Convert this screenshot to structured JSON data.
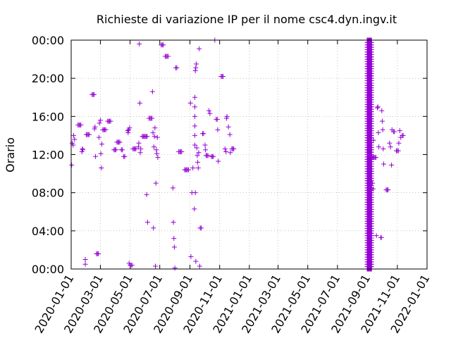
{
  "chart_data": {
    "type": "scatter",
    "title": "Richieste di variazione IP per il nome csc4.dyn.ingv.it",
    "xlabel": "",
    "ylabel": "Orario",
    "x_range": [
      "2020-01-01",
      "2022-01-01"
    ],
    "y_range_hours": [
      0,
      24
    ],
    "x_ticks": [
      "2020-01-01",
      "2020-03-01",
      "2020-05-01",
      "2020-07-01",
      "2020-09-01",
      "2020-11-01",
      "2021-01-01",
      "2021-03-01",
      "2021-05-01",
      "2021-07-01",
      "2021-09-01",
      "2021-11-01",
      "2022-01-01"
    ],
    "y_ticks": [
      {
        "value": 0,
        "label": "00:00"
      },
      {
        "value": 4,
        "label": "04:00"
      },
      {
        "value": 8,
        "label": "08:00"
      },
      {
        "value": 12,
        "label": "12:00"
      },
      {
        "value": 16,
        "label": "16:00"
      },
      {
        "value": 20,
        "label": "20:00"
      },
      {
        "value": 24,
        "label": "00:00"
      }
    ],
    "grid": true,
    "marker": "plus",
    "color": "#9400d3",
    "points": [
      [
        "2020-01-02",
        10.9
      ],
      [
        "2020-01-03",
        13.2
      ],
      [
        "2020-01-05",
        13.0
      ],
      [
        "2020-01-06",
        14.0
      ],
      [
        "2020-01-08",
        13.6
      ],
      [
        "2020-01-15",
        15.1
      ],
      [
        "2020-01-17",
        15.1
      ],
      [
        "2020-01-19",
        15.1
      ],
      [
        "2020-01-21",
        15.1
      ],
      [
        "2020-01-23",
        12.3
      ],
      [
        "2020-01-24",
        12.6
      ],
      [
        "2020-01-25",
        12.5
      ],
      [
        "2020-01-30",
        0.5
      ],
      [
        "2020-01-30",
        1.0
      ],
      [
        "2020-02-01",
        14.1
      ],
      [
        "2020-02-03",
        14.1
      ],
      [
        "2020-02-05",
        14.1
      ],
      [
        "2020-02-07",
        14.1
      ],
      [
        "2020-02-13",
        18.3
      ],
      [
        "2020-02-15",
        18.3
      ],
      [
        "2020-02-17",
        18.3
      ],
      [
        "2020-02-18",
        14.7
      ],
      [
        "2020-02-19",
        14.9
      ],
      [
        "2020-02-20",
        11.8
      ],
      [
        "2020-02-22",
        1.6
      ],
      [
        "2020-02-24",
        1.6
      ],
      [
        "2020-02-26",
        1.6
      ],
      [
        "2020-02-27",
        13.8
      ],
      [
        "2020-02-28",
        15.3
      ],
      [
        "2020-03-01",
        15.6
      ],
      [
        "2020-03-02",
        12.1
      ],
      [
        "2020-03-03",
        10.6
      ],
      [
        "2020-03-04",
        13.1
      ],
      [
        "2020-03-06",
        14.6
      ],
      [
        "2020-03-08",
        14.6
      ],
      [
        "2020-03-10",
        14.6
      ],
      [
        "2020-03-12",
        14.6
      ],
      [
        "2020-03-16",
        15.5
      ],
      [
        "2020-03-18",
        15.5
      ],
      [
        "2020-03-20",
        15.5
      ],
      [
        "2020-03-22",
        15.5
      ],
      [
        "2020-03-29",
        12.5
      ],
      [
        "2020-03-31",
        12.5
      ],
      [
        "2020-04-02",
        12.5
      ],
      [
        "2020-04-04",
        13.3
      ],
      [
        "2020-04-06",
        13.3
      ],
      [
        "2020-04-08",
        13.3
      ],
      [
        "2020-04-10",
        13.3
      ],
      [
        "2020-04-13",
        12.5
      ],
      [
        "2020-04-15",
        12.5
      ],
      [
        "2020-04-18",
        11.8
      ],
      [
        "2020-04-20",
        11.8
      ],
      [
        "2020-04-26",
        14.5
      ],
      [
        "2020-04-27",
        14.3
      ],
      [
        "2020-04-28",
        14.6
      ],
      [
        "2020-04-29",
        0.6
      ],
      [
        "2020-04-30",
        14.8
      ],
      [
        "2020-05-01",
        0.4
      ],
      [
        "2020-05-03",
        0.4
      ],
      [
        "2020-05-05",
        0.4
      ],
      [
        "2020-05-07",
        12.6
      ],
      [
        "2020-05-09",
        12.6
      ],
      [
        "2020-05-11",
        12.6
      ],
      [
        "2020-05-13",
        12.6
      ],
      [
        "2020-05-18",
        12.8
      ],
      [
        "2020-05-19",
        13.2
      ],
      [
        "2020-05-20",
        23.6
      ],
      [
        "2020-05-21",
        17.4
      ],
      [
        "2020-05-22",
        12.2
      ],
      [
        "2020-05-23",
        12.6
      ],
      [
        "2020-05-26",
        13.9
      ],
      [
        "2020-05-28",
        13.9
      ],
      [
        "2020-05-30",
        13.9
      ],
      [
        "2020-06-01",
        13.9
      ],
      [
        "2020-06-03",
        13.9
      ],
      [
        "2020-06-05",
        13.9
      ],
      [
        "2020-06-04",
        7.8
      ],
      [
        "2020-06-06",
        4.9
      ],
      [
        "2020-06-09",
        15.8
      ],
      [
        "2020-06-11",
        15.8
      ],
      [
        "2020-06-13",
        15.8
      ],
      [
        "2020-06-15",
        15.8
      ],
      [
        "2020-06-16",
        18.6
      ],
      [
        "2020-06-17",
        14.3
      ],
      [
        "2020-06-18",
        4.3
      ],
      [
        "2020-06-19",
        12.8
      ],
      [
        "2020-06-20",
        13.9
      ],
      [
        "2020-06-21",
        14.8
      ],
      [
        "2020-06-22",
        0.3
      ],
      [
        "2020-06-23",
        9.0
      ],
      [
        "2020-06-24",
        12.5
      ],
      [
        "2020-06-25",
        12.1
      ],
      [
        "2020-06-26",
        13.8
      ],
      [
        "2020-06-27",
        11.7
      ],
      [
        "2020-07-04",
        23.5
      ],
      [
        "2020-07-06",
        23.5
      ],
      [
        "2020-07-08",
        23.5
      ],
      [
        "2020-07-12",
        22.3
      ],
      [
        "2020-07-14",
        22.3
      ],
      [
        "2020-07-16",
        22.3
      ],
      [
        "2020-07-18",
        22.3
      ],
      [
        "2020-07-28",
        8.5
      ],
      [
        "2020-07-29",
        4.9
      ],
      [
        "2020-07-30",
        3.2
      ],
      [
        "2020-07-31",
        2.3
      ],
      [
        "2020-08-01",
        0.1
      ],
      [
        "2020-08-03",
        21.1
      ],
      [
        "2020-08-05",
        21.1
      ],
      [
        "2020-08-09",
        12.3
      ],
      [
        "2020-08-11",
        12.3
      ],
      [
        "2020-08-13",
        12.3
      ],
      [
        "2020-08-15",
        12.3
      ],
      [
        "2020-08-21",
        10.4
      ],
      [
        "2020-08-23",
        10.4
      ],
      [
        "2020-08-25",
        10.4
      ],
      [
        "2020-08-27",
        10.4
      ],
      [
        "2020-08-29",
        10.4
      ],
      [
        "2020-09-02",
        17.4
      ],
      [
        "2020-09-03",
        1.3
      ],
      [
        "2020-09-05",
        8.0
      ],
      [
        "2020-09-07",
        10.6
      ],
      [
        "2020-09-10",
        6.3
      ],
      [
        "2020-09-12",
        8.0
      ],
      [
        "2020-09-13",
        0.8
      ],
      [
        "2020-09-11",
        13.0
      ],
      [
        "2020-09-11",
        14.0
      ],
      [
        "2020-09-11",
        15.0
      ],
      [
        "2020-09-11",
        16.0
      ],
      [
        "2020-09-11",
        17.0
      ],
      [
        "2020-09-11",
        18.0
      ],
      [
        "2020-09-12",
        20.8
      ],
      [
        "2020-09-13",
        21.1
      ],
      [
        "2020-09-14",
        21.5
      ],
      [
        "2020-09-15",
        12.7
      ],
      [
        "2020-09-16",
        11.9
      ],
      [
        "2020-09-17",
        11.2
      ],
      [
        "2020-09-18",
        10.6
      ],
      [
        "2020-09-19",
        12.2
      ],
      [
        "2020-09-20",
        23.1
      ],
      [
        "2020-09-21",
        0.3
      ],
      [
        "2020-09-22",
        4.3
      ],
      [
        "2020-09-24",
        4.3
      ],
      [
        "2020-09-27",
        14.2
      ],
      [
        "2020-09-29",
        14.2
      ],
      [
        "2020-10-02",
        13.0
      ],
      [
        "2020-10-03",
        12.5
      ],
      [
        "2020-10-04",
        11.9
      ],
      [
        "2020-10-06",
        11.9
      ],
      [
        "2020-10-08",
        11.9
      ],
      [
        "2020-10-10",
        16.6
      ],
      [
        "2020-10-12",
        16.3
      ],
      [
        "2020-10-15",
        11.8
      ],
      [
        "2020-10-17",
        11.8
      ],
      [
        "2020-10-19",
        11.8
      ],
      [
        "2020-10-22",
        24.0
      ],
      [
        "2020-10-25",
        15.7
      ],
      [
        "2020-10-27",
        15.7
      ],
      [
        "2020-10-28",
        14.6
      ],
      [
        "2020-10-29",
        11.3
      ],
      [
        "2020-11-04",
        20.2
      ],
      [
        "2020-11-06",
        20.2
      ],
      [
        "2020-11-08",
        20.2
      ],
      [
        "2020-11-12",
        12.6
      ],
      [
        "2020-11-14",
        12.3
      ],
      [
        "2020-11-15",
        15.8
      ],
      [
        "2020-11-16",
        16.0
      ],
      [
        "2020-11-19",
        14.9
      ],
      [
        "2020-11-22",
        14.1
      ],
      [
        "2020-11-23",
        12.2
      ],
      [
        "2020-11-26",
        12.6
      ],
      [
        "2020-11-28",
        12.6
      ],
      [
        "2020-11-30",
        12.6
      ]
    ],
    "dense_band": {
      "x_start": "2021-08-31",
      "x_end": "2021-09-09",
      "y_from": 0.0,
      "y_to": 24.0,
      "step": 0.25
    },
    "points_after": [
      [
        "2021-09-10",
        11.7
      ],
      [
        "2021-09-12",
        11.7
      ],
      [
        "2021-09-14",
        11.7
      ],
      [
        "2021-09-16",
        11.7
      ],
      [
        "2021-09-18",
        11.7
      ],
      [
        "2021-09-11",
        9.0
      ],
      [
        "2021-09-12",
        8.4
      ],
      [
        "2021-09-13",
        13.5
      ],
      [
        "2021-09-19",
        3.5
      ],
      [
        "2021-09-21",
        16.9
      ],
      [
        "2021-09-22",
        17.0
      ],
      [
        "2021-09-23",
        14.3
      ],
      [
        "2021-09-24",
        12.8
      ],
      [
        "2021-09-28",
        3.3
      ],
      [
        "2021-09-29",
        3.3
      ],
      [
        "2021-09-30",
        16.6
      ],
      [
        "2021-10-01",
        15.5
      ],
      [
        "2021-10-02",
        14.6
      ],
      [
        "2021-10-03",
        12.6
      ],
      [
        "2021-10-04",
        11.0
      ],
      [
        "2021-10-09",
        8.3
      ],
      [
        "2021-10-11",
        8.3
      ],
      [
        "2021-10-13",
        8.3
      ],
      [
        "2021-10-16",
        13.2
      ],
      [
        "2021-10-18",
        12.8
      ],
      [
        "2021-10-20",
        10.9
      ],
      [
        "2021-10-21",
        14.6
      ],
      [
        "2021-10-24",
        14.4
      ],
      [
        "2021-10-26",
        14.4
      ],
      [
        "2021-10-30",
        12.4
      ],
      [
        "2021-11-01",
        12.4
      ],
      [
        "2021-11-03",
        12.4
      ],
      [
        "2021-11-04",
        13.2
      ],
      [
        "2021-11-06",
        14.5
      ],
      [
        "2021-11-08",
        13.8
      ],
      [
        "2021-11-11",
        14.0
      ],
      [
        "2021-11-13",
        14.0
      ]
    ]
  }
}
